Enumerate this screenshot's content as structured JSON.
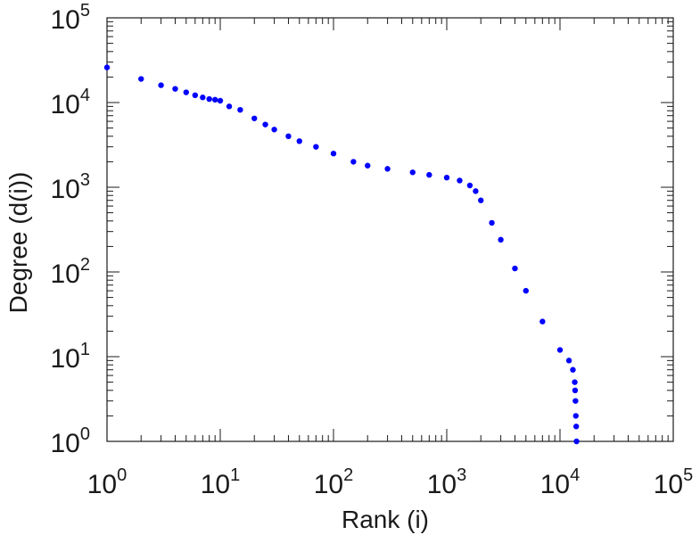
{
  "chart_data": {
    "type": "scatter",
    "xlabel": "Rank (i)",
    "ylabel": "Degree (d(i))",
    "x_scale": "log",
    "y_scale": "log",
    "xlim": [
      1,
      100000
    ],
    "ylim": [
      1,
      100000
    ],
    "x_tick_labels": [
      {
        "base": "10",
        "exp": "0"
      },
      {
        "base": "10",
        "exp": "1"
      },
      {
        "base": "10",
        "exp": "2"
      },
      {
        "base": "10",
        "exp": "3"
      },
      {
        "base": "10",
        "exp": "4"
      },
      {
        "base": "10",
        "exp": "5"
      }
    ],
    "y_tick_labels": [
      {
        "base": "10",
        "exp": "0"
      },
      {
        "base": "10",
        "exp": "1"
      },
      {
        "base": "10",
        "exp": "2"
      },
      {
        "base": "10",
        "exp": "3"
      },
      {
        "base": "10",
        "exp": "4"
      },
      {
        "base": "10",
        "exp": "5"
      }
    ],
    "grid": false,
    "marker_color": "#0000ff",
    "series": [
      {
        "x": [
          1,
          2,
          3,
          4,
          5,
          6,
          7,
          8,
          9,
          10,
          12,
          15,
          20,
          25,
          30,
          40,
          50,
          70,
          100,
          150,
          200,
          300,
          500,
          700,
          1000,
          1300,
          1600,
          1800,
          2000,
          2500,
          3000,
          4000,
          5000,
          7000,
          10000,
          12000,
          13000,
          13500,
          13600,
          13700,
          13800,
          13900,
          14000
        ],
        "y": [
          26000,
          19000,
          16000,
          14500,
          13200,
          12200,
          11500,
          11000,
          10800,
          10500,
          9000,
          8200,
          6500,
          5500,
          4800,
          4000,
          3500,
          3000,
          2500,
          2000,
          1800,
          1650,
          1500,
          1400,
          1300,
          1200,
          1050,
          900,
          700,
          380,
          240,
          110,
          60,
          26,
          12,
          9,
          7,
          5,
          4,
          3,
          2,
          1.5,
          1
        ]
      }
    ]
  }
}
